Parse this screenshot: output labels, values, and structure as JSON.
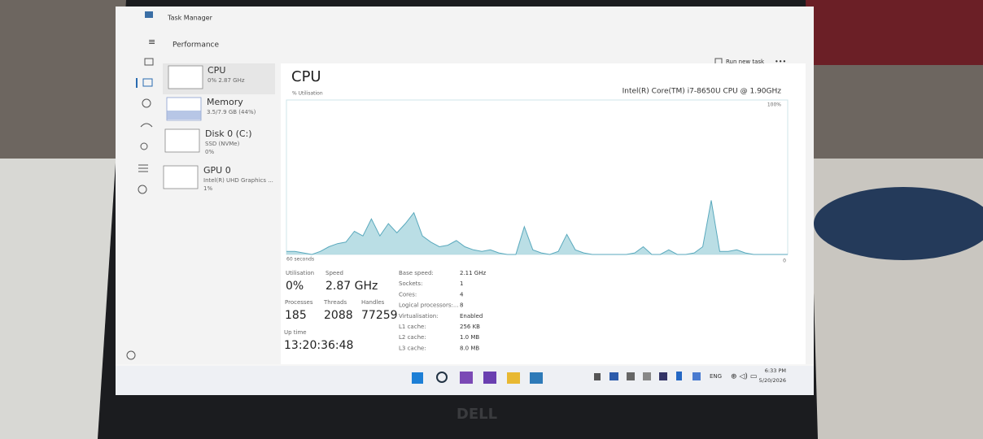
{
  "window": {
    "title": "Task Manager",
    "page": "Performance",
    "run_new_task": "Run new task"
  },
  "sidebar": [
    {
      "name": "CPU",
      "detail": "0% 2.87 GHz"
    },
    {
      "name": "Memory",
      "detail": "3.5/7.9 GB (44%)"
    },
    {
      "name": "Disk 0 (C:)",
      "detail": "SSD (NVMe)",
      "detail2": "0%"
    },
    {
      "name": "GPU 0",
      "detail": "Intel(R) UHD Graphics ...",
      "detail2": "1%"
    }
  ],
  "cpu": {
    "title": "CPU",
    "model": "Intel(R) Core(TM) i7-8650U CPU @ 1.90GHz",
    "stats": [
      {
        "label": "Utilisation",
        "value": "0%"
      },
      {
        "label": "Speed",
        "value": "2.87 GHz"
      },
      {
        "label": "Processes",
        "value": "185"
      },
      {
        "label": "Threads",
        "value": "2088"
      },
      {
        "label": "Handles",
        "value": "77259"
      },
      {
        "label": "Up time",
        "value": "13:20:36:48"
      }
    ],
    "specs": [
      {
        "label": "Base speed:",
        "value": "2.11 GHz"
      },
      {
        "label": "Sockets:",
        "value": "1"
      },
      {
        "label": "Cores:",
        "value": "4"
      },
      {
        "label": "Logical processors:...",
        "value": "8"
      },
      {
        "label": "Virtualisation:",
        "value": "Enabled"
      },
      {
        "label": "L1 cache:",
        "value": "256 KB"
      },
      {
        "label": "L2 cache:",
        "value": "1.0 MB"
      },
      {
        "label": "L3 cache:",
        "value": "8.0 MB"
      }
    ]
  },
  "chart_data": {
    "type": "area",
    "ylabel": "% Utilisation",
    "xlabel": "60 seconds",
    "ylim": [
      0,
      100
    ],
    "yticks": [
      {
        "value": 100,
        "label": "100%"
      },
      0
    ],
    "color": "#a9d6df",
    "values": [
      2,
      2,
      1,
      0,
      2,
      5,
      7,
      8,
      15,
      12,
      23,
      12,
      20,
      14,
      20,
      27,
      12,
      8,
      5,
      6,
      9,
      5,
      3,
      2,
      3,
      1,
      0,
      0,
      18,
      3,
      1,
      0,
      2,
      13,
      3,
      1,
      0,
      0,
      0,
      0,
      0,
      1,
      5,
      0,
      0,
      3,
      0,
      0,
      1,
      5,
      35,
      2,
      2,
      3,
      1,
      0,
      0,
      0,
      0,
      0
    ]
  },
  "taskbar": {
    "language": "ENG",
    "time": "6:33 PM",
    "date": "5/20/2026"
  },
  "brand": "DELL"
}
